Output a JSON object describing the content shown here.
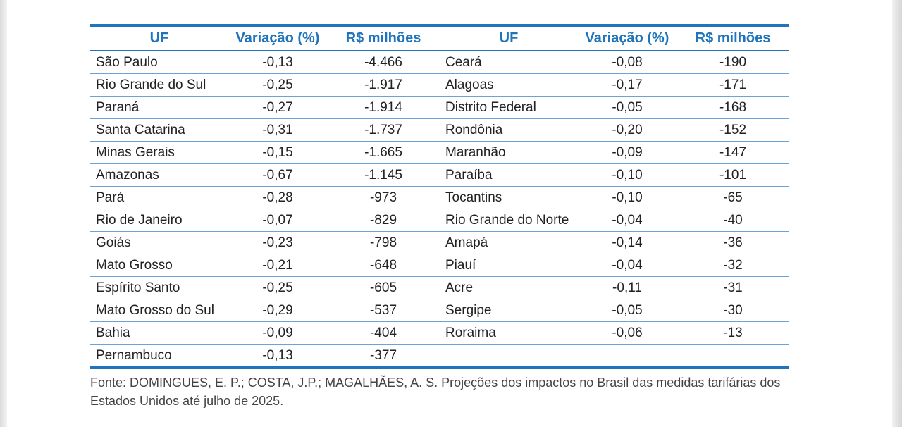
{
  "table": {
    "headers": [
      "UF",
      "Variação (%)",
      "R$ milhões",
      "UF",
      "Variação (%)",
      "R$ milhões"
    ],
    "rows": [
      [
        "São Paulo",
        "-0,13",
        "-4.466",
        "Ceará",
        "-0,08",
        "-190"
      ],
      [
        "Rio Grande do Sul",
        "-0,25",
        "-1.917",
        "Alagoas",
        "-0,17",
        "-171"
      ],
      [
        "Paraná",
        "-0,27",
        "-1.914",
        "Distrito Federal",
        "-0,05",
        "-168"
      ],
      [
        "Santa Catarina",
        "-0,31",
        "-1.737",
        "Rondônia",
        "-0,20",
        "-152"
      ],
      [
        "Minas Gerais",
        "-0,15",
        "-1.665",
        "Maranhão",
        "-0,09",
        "-147"
      ],
      [
        "Amazonas",
        "-0,67",
        "-1.145",
        "Paraíba",
        "-0,10",
        "-101"
      ],
      [
        "Pará",
        "-0,28",
        "-973",
        "Tocantins",
        "-0,10",
        "-65"
      ],
      [
        "Rio de Janeiro",
        "-0,07",
        "-829",
        "Rio Grande do Norte",
        "-0,04",
        "-40"
      ],
      [
        "Goiás",
        "-0,23",
        "-798",
        "Amapá",
        "-0,14",
        "-36"
      ],
      [
        "Mato Grosso",
        "-0,21",
        "-648",
        "Piauí",
        "-0,04",
        "-32"
      ],
      [
        "Espírito Santo",
        "-0,25",
        "-605",
        "Acre",
        "-0,11",
        "-31"
      ],
      [
        "Mato Grosso do Sul",
        "-0,29",
        "-537",
        "Sergipe",
        "-0,05",
        "-30"
      ],
      [
        "Bahia",
        "-0,09",
        "-404",
        "Roraima",
        "-0,06",
        "-13"
      ],
      [
        "Pernambuco",
        "-0,13",
        "-377",
        "",
        "",
        ""
      ]
    ]
  },
  "source": "Fonte: DOMINGUES, E. P.; COSTA, J.P.; MAGALHÃES, A. S. Projeções dos impactos no Brasil das medidas tarifárias dos Estados Unidos até julho de 2025.",
  "colors": {
    "accent": "#1f74bb",
    "row_rule": "#6aa4d6",
    "text": "#222222"
  }
}
